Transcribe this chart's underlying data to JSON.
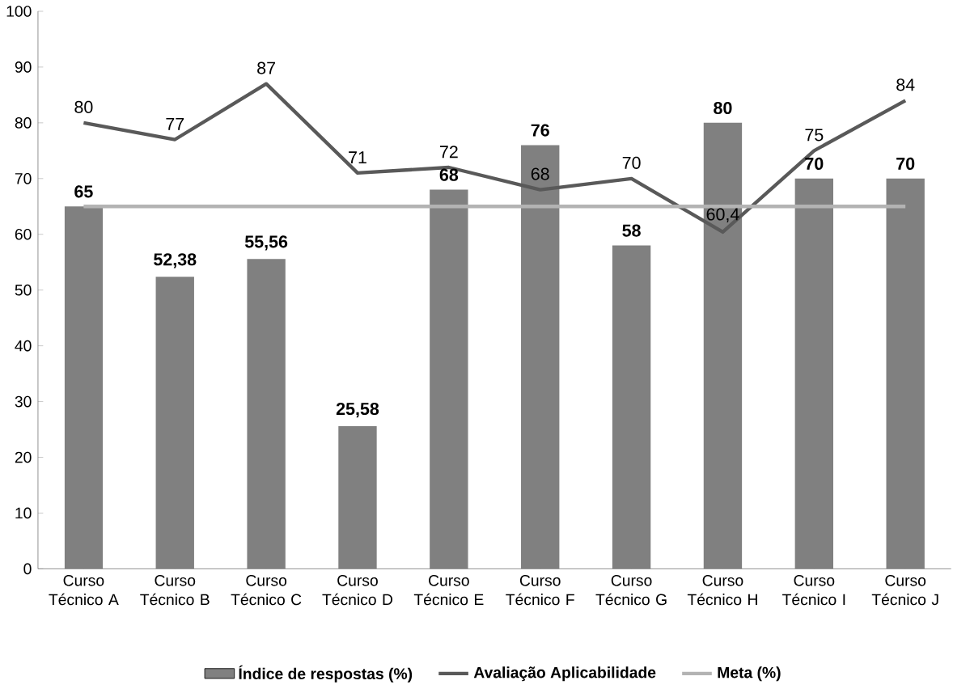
{
  "chart_data": {
    "type": "bar",
    "categories": [
      "Curso Técnico A",
      "Curso Técnico B",
      "Curso Técnico C",
      "Curso Técnico D",
      "Curso Técnico E",
      "Curso Técnico F",
      "Curso Técnico G",
      "Curso Técnico H",
      "Curso Técnico I",
      "Curso Técnico J"
    ],
    "series": [
      {
        "name": "Índice de respostas (%)",
        "color": "#808080",
        "values": [
          65,
          52.38,
          55.56,
          25.58,
          68,
          76,
          58,
          80,
          70,
          70
        ],
        "value_labels": [
          "65",
          "52,38",
          "55,56",
          "25,58",
          "68",
          "76",
          "58",
          "80",
          "70",
          "70"
        ]
      },
      {
        "name": "Avaliação Aplicabilidade",
        "type": "line",
        "color": "#595959",
        "values": [
          80,
          77,
          87,
          71,
          72,
          68,
          70,
          60.4,
          75,
          84
        ],
        "value_labels": [
          "80",
          "77",
          "87",
          "71",
          "72",
          "68",
          "70",
          "60,4",
          "75",
          "84"
        ]
      },
      {
        "name": "Meta (%)",
        "type": "line",
        "color": "#b3b3b3",
        "values": [
          65,
          65,
          65,
          65,
          65,
          65,
          65,
          65,
          65,
          65
        ]
      }
    ],
    "ylim": [
      0,
      100
    ],
    "yticks": [
      0,
      10,
      20,
      30,
      40,
      50,
      60,
      70,
      80,
      90,
      100
    ],
    "legend": "bottom",
    "grid": false
  }
}
